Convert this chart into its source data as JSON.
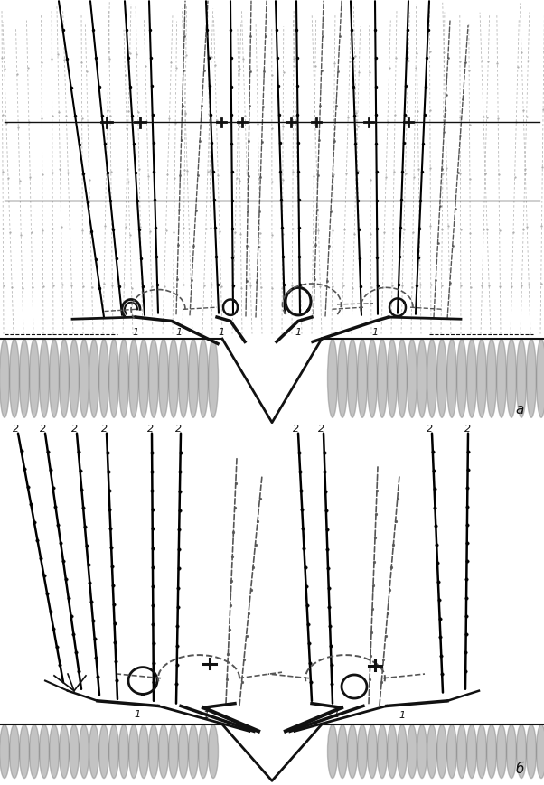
{
  "bg_color": "#ffffff",
  "lc": "#111111",
  "dc": "#555555",
  "gc": "#888888",
  "label_a": "a",
  "label_b": "б",
  "fig_w": 6.02,
  "fig_h": 8.7,
  "dpi": 100
}
